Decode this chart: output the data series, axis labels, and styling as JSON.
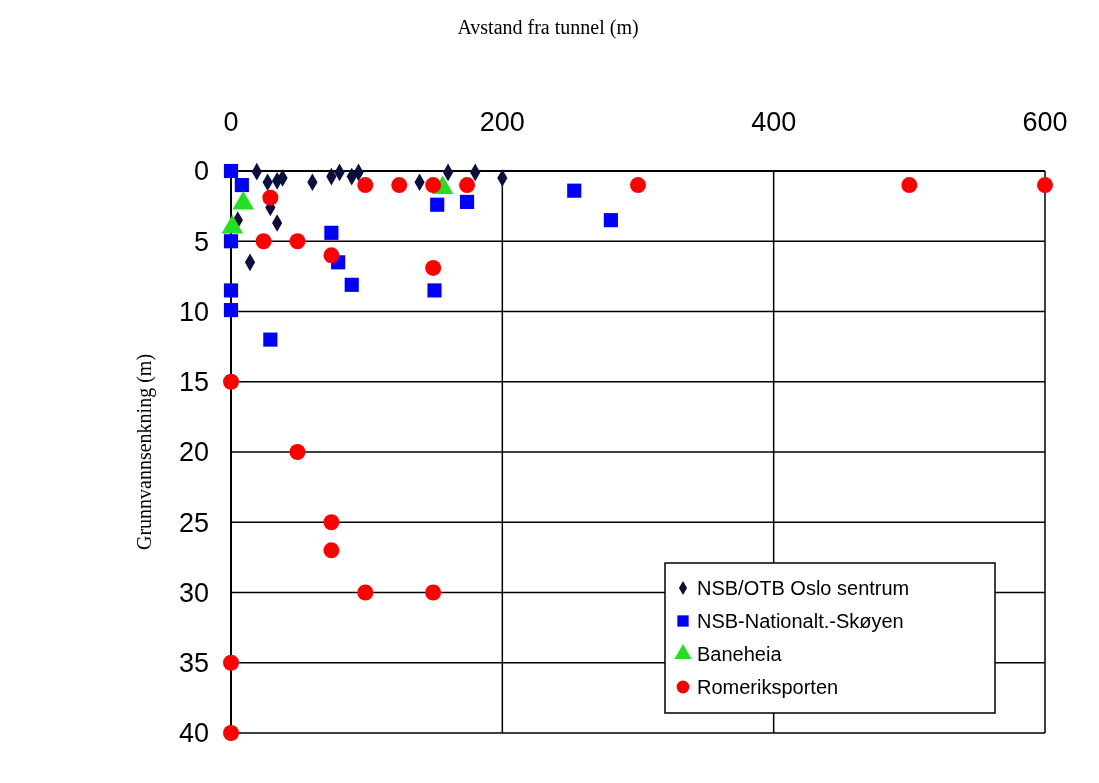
{
  "chart_data": {
    "type": "scatter",
    "xlabel": "Avstand fra tunnel (m)",
    "ylabel": "Grunnvannsenkning (m)",
    "xlim": [
      0,
      600
    ],
    "xticks": [
      0,
      200,
      400,
      600
    ],
    "ylim": [
      40,
      0
    ],
    "yticks": [
      0,
      5,
      10,
      15,
      20,
      25,
      30,
      35,
      40
    ],
    "grid": true,
    "legend": "bottom right",
    "series": [
      {
        "name": "NSB/OTB Oslo sentrum",
        "color": "#0a0f3c",
        "marker": "diamond",
        "x": [
          19,
          27,
          34,
          38,
          60,
          74,
          80,
          89,
          94,
          139,
          160,
          180,
          200,
          29,
          34,
          14,
          5
        ],
        "values": [
          0.05,
          0.8,
          0.7,
          0.5,
          0.8,
          0.4,
          0.1,
          0.4,
          0.1,
          0.8,
          0.1,
          0.1,
          0.5,
          2.6,
          3.7,
          6.5,
          3.5
        ]
      },
      {
        "name": "NSB-Nationalt.-Skøyen",
        "color": "#0000ff",
        "marker": "square",
        "x": [
          0,
          8,
          74,
          79,
          89,
          152,
          174,
          150,
          0,
          0,
          0,
          29,
          253,
          280
        ],
        "values": [
          0,
          1,
          4.4,
          6.5,
          8.1,
          2.4,
          2.2,
          8.5,
          5,
          8.5,
          9.9,
          12,
          1.4,
          3.5
        ]
      },
      {
        "name": "Baneheia",
        "color": "#22e022",
        "marker": "triangle",
        "x": [
          9,
          1,
          156
        ],
        "values": [
          2.3,
          4,
          1.2
        ]
      },
      {
        "name": "Romeriksporten",
        "color": "#ff0000",
        "marker": "circle",
        "x": [
          99,
          124,
          149,
          174,
          29,
          24,
          49,
          74,
          149,
          300,
          500,
          600,
          0,
          49,
          74,
          74,
          99,
          149,
          0,
          0
        ],
        "values": [
          1,
          1,
          1,
          1,
          1.9,
          5,
          5,
          6,
          6.9,
          1,
          1,
          1,
          15,
          20,
          25,
          27,
          30,
          30,
          35,
          40
        ]
      }
    ]
  }
}
